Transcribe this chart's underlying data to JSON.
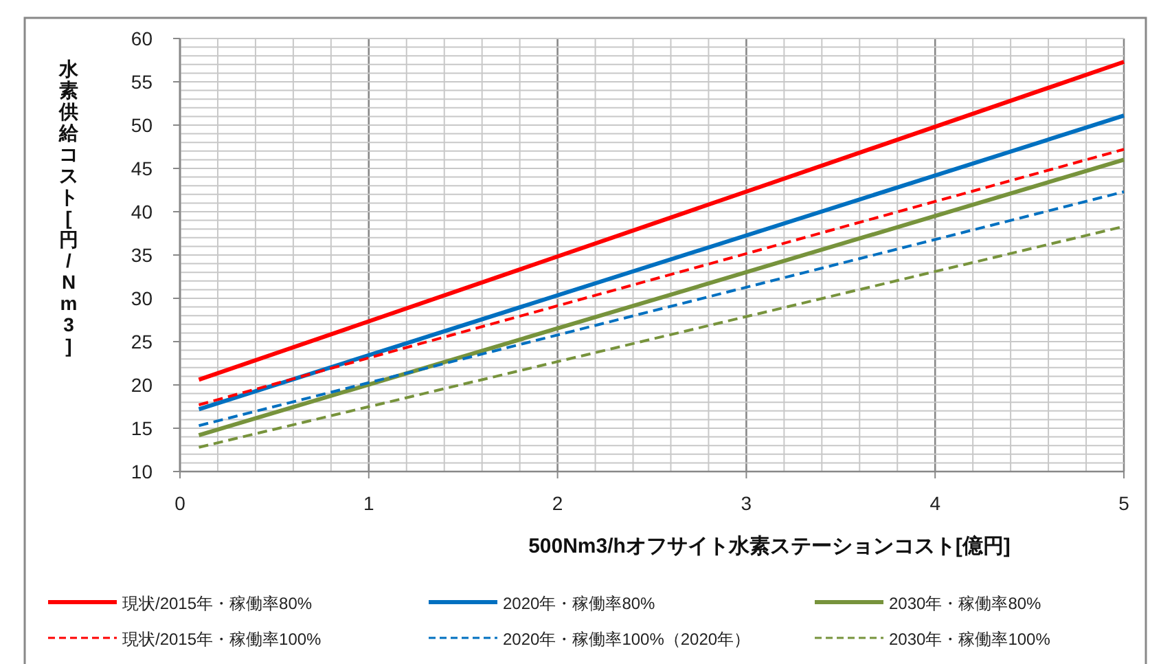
{
  "chart_data": {
    "type": "line",
    "xlabel": "500Nm3/hオフサイト水素ステーションコスト[億円]",
    "ylabel": "水素供給コスト[円/Nm3]",
    "x": [
      0.1,
      5
    ],
    "xlim": [
      0,
      5
    ],
    "xticks": [
      0,
      1,
      2,
      3,
      4,
      5
    ],
    "ylim": [
      10,
      60
    ],
    "yticks": [
      10,
      15,
      20,
      25,
      30,
      35,
      40,
      45,
      50,
      55,
      60
    ],
    "grid": true,
    "legend": "bottom",
    "series": [
      {
        "name": "現状/2015年・稼働率80%",
        "color": "#ff0000",
        "line_style": "solid",
        "values": [
          20.6,
          57.3
        ]
      },
      {
        "name": "2020年・稼働率80%",
        "color": "#0070c0",
        "line_style": "solid",
        "values": [
          17.2,
          51.1
        ]
      },
      {
        "name": "2030年・稼働率80%",
        "color": "#77933c",
        "line_style": "solid",
        "values": [
          14.2,
          46.0
        ]
      },
      {
        "name": "現状/2015年・稼働率100%",
        "color": "#ff0000",
        "line_style": "dashed",
        "values": [
          17.7,
          47.2
        ]
      },
      {
        "name": "2020年・稼働率100%（2020年）",
        "color": "#0070c0",
        "line_style": "dashed",
        "values": [
          15.3,
          42.3
        ]
      },
      {
        "name": "2030年・稼働率100%",
        "color": "#77933c",
        "line_style": "dashed",
        "values": [
          12.8,
          38.3
        ]
      }
    ]
  }
}
